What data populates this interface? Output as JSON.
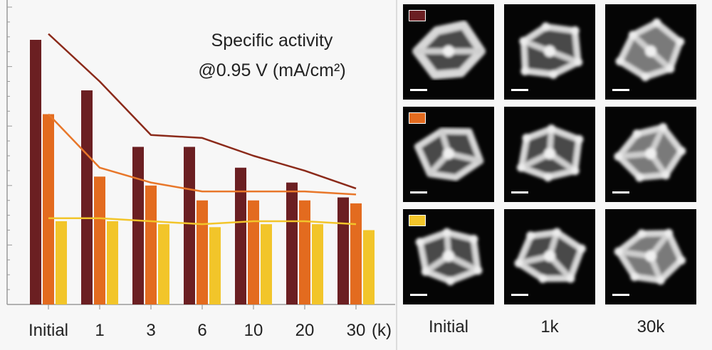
{
  "chart_data": {
    "type": "bar",
    "title": "Specific activity\n@0.95 V (mA/cm²)",
    "categories": [
      "Initial",
      "1",
      "3",
      "6",
      "10",
      "20",
      "30"
    ],
    "x_unit_label": "(k)",
    "ylim": [
      0,
      100
    ],
    "series": [
      {
        "color": "#6b1f22",
        "values": [
          89,
          72,
          53,
          53,
          46,
          41,
          36
        ]
      },
      {
        "color": "#e36b1f",
        "values": [
          64,
          43,
          40,
          35,
          35,
          35,
          34
        ]
      },
      {
        "color": "#f2c52a",
        "values": [
          28,
          28,
          27,
          26,
          27,
          27,
          25
        ]
      }
    ],
    "trend_lines": [
      {
        "color": "#8b2a1a",
        "values": [
          91,
          75,
          57,
          56,
          50,
          45,
          39
        ]
      },
      {
        "color": "#e8772a",
        "values": [
          64,
          46,
          41,
          38,
          38,
          38,
          37
        ]
      },
      {
        "color": "#f2c52a",
        "values": [
          29,
          29,
          28,
          27,
          28,
          28,
          27
        ]
      }
    ],
    "grid": false,
    "legend": "none"
  },
  "micrographs": {
    "column_labels": [
      "Initial",
      "1k",
      "30k"
    ],
    "row_colors": [
      "#6b1f22",
      "#e36b1f",
      "#f2c52a"
    ]
  }
}
